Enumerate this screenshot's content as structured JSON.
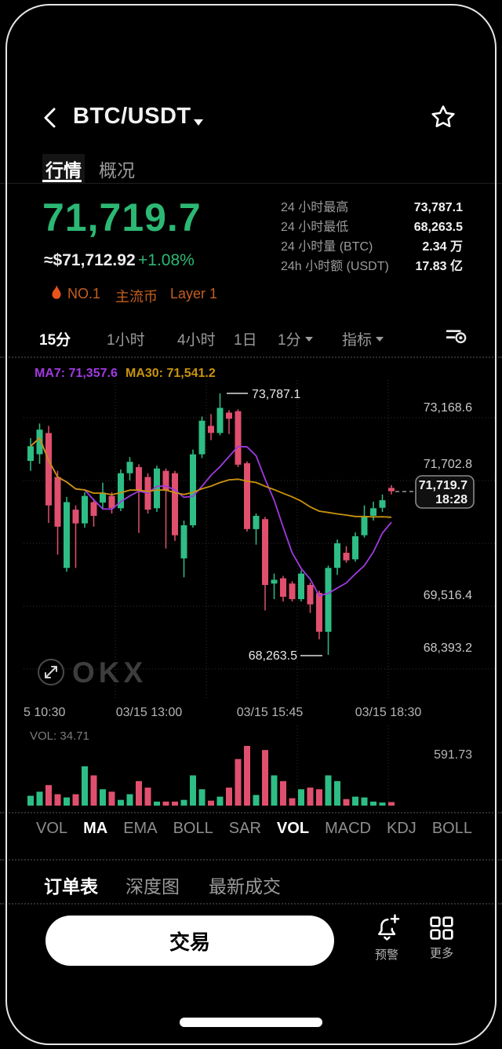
{
  "header": {
    "title": "BTC/USDT",
    "back_icon": "chevron-left",
    "pair_dropdown_icon": "caret-down",
    "favorite_icon": "star-outline"
  },
  "nav_tabs": [
    {
      "label": "行情",
      "active": true
    },
    {
      "label": "概况",
      "active": false
    }
  ],
  "price_panel": {
    "last_price": "71,719.7",
    "fiat_value": "≈$71,712.92",
    "change_pct": "+1.08%",
    "tags": [
      {
        "icon": "flame",
        "label": "NO.1"
      },
      {
        "label": "主流币"
      },
      {
        "label": "Layer 1"
      }
    ]
  },
  "stats": {
    "rows": [
      {
        "label": "24 小时最高",
        "value": "73,787.1"
      },
      {
        "label": "24 小时最低",
        "value": "68,263.5"
      },
      {
        "label": "24 小时量 (BTC)",
        "value": "2.34 万"
      },
      {
        "label": "24h 小时额 (USDT)",
        "value": "17.83 亿"
      }
    ]
  },
  "timeframe_bar": {
    "items": [
      {
        "label": "15分",
        "active": true
      },
      {
        "label": "1小时",
        "active": false
      },
      {
        "label": "4小时",
        "active": false
      },
      {
        "label": "1日",
        "active": false
      },
      {
        "label": "1分",
        "active": false,
        "caret": true
      },
      {
        "label": "指标",
        "active": false,
        "caret": true
      }
    ],
    "settings_icon": "indicator-settings"
  },
  "chart_data": {
    "type": "candlestick",
    "interval": "15m",
    "ma_labels": {
      "ma7": "MA7: 71,357.6",
      "ma30": "MA30: 71,541.2"
    },
    "annotations": {
      "high": "73,787.1",
      "low": "68,263.5"
    },
    "last_price": "71,719.7",
    "last_time": "18:28",
    "y_ticks": [
      "73,168.6",
      "71,702.8",
      "69,516.4",
      "68,393.2"
    ],
    "x_ticks": [
      "5 10:30",
      "03/15 13:00",
      "03/15 15:45",
      "03/15 18:30"
    ],
    "volume": {
      "current_label": "VOL: 34.71",
      "max_label": "591.73",
      "max_value": 591.73
    },
    "colors": {
      "up": "#2ebd85",
      "down": "#e0506e",
      "ma7": "#a03ae0",
      "ma30": "#c9930f"
    },
    "watermark": "OKX",
    "candles": [
      [
        72360,
        72840,
        72150,
        72670,
        97
      ],
      [
        72500,
        73150,
        72300,
        73020,
        138
      ],
      [
        72950,
        73100,
        71050,
        71420,
        203
      ],
      [
        72020,
        72150,
        70380,
        70970,
        113
      ],
      [
        70100,
        71600,
        70020,
        71490,
        81
      ],
      [
        71330,
        71420,
        70100,
        71040,
        113
      ],
      [
        71040,
        71700,
        70950,
        71620,
        389
      ],
      [
        71490,
        71560,
        70970,
        71200,
        300
      ],
      [
        71480,
        71900,
        71330,
        71690,
        162
      ],
      [
        71620,
        71700,
        71250,
        71360,
        138
      ],
      [
        71360,
        72180,
        71300,
        72100,
        57
      ],
      [
        72100,
        72440,
        71950,
        72340,
        113
      ],
      [
        72230,
        72290,
        70840,
        71740,
        243
      ],
      [
        72020,
        72100,
        71250,
        71330,
        178
      ],
      [
        71360,
        72260,
        71280,
        72200,
        40
      ],
      [
        72150,
        72200,
        70510,
        71740,
        40
      ],
      [
        72100,
        72150,
        70670,
        70790,
        40
      ],
      [
        70300,
        71100,
        69900,
        71000,
        57
      ],
      [
        71000,
        72600,
        70950,
        72500,
        300
      ],
      [
        72500,
        73300,
        72420,
        73210,
        162
      ],
      [
        73100,
        73350,
        72800,
        72950,
        49
      ],
      [
        72950,
        73787.1,
        72900,
        73480,
        89
      ],
      [
        73380,
        73430,
        72930,
        73250,
        178
      ],
      [
        73410,
        73450,
        72230,
        72280,
        462
      ],
      [
        72310,
        72350,
        70870,
        70920,
        591.73
      ],
      [
        70920,
        71250,
        70590,
        71200,
        105
      ],
      [
        71130,
        71180,
        69200,
        69740,
        551
      ],
      [
        69770,
        69980,
        69440,
        69850,
        300
      ],
      [
        69880,
        69930,
        69390,
        69490,
        243
      ],
      [
        69770,
        69820,
        69390,
        69440,
        73
      ],
      [
        69440,
        70050,
        69390,
        69980,
        162
      ],
      [
        69740,
        69790,
        69150,
        69330,
        178
      ],
      [
        69570,
        69620,
        68590,
        68750,
        162
      ],
      [
        68750,
        70150,
        68263.5,
        70100,
        300
      ],
      [
        70100,
        70700,
        69950,
        70620,
        243
      ],
      [
        70420,
        70560,
        70210,
        70260,
        65
      ],
      [
        70280,
        70850,
        70230,
        70770,
        89
      ],
      [
        70790,
        71420,
        70740,
        71200,
        81
      ],
      [
        71200,
        71500,
        71100,
        71360,
        40
      ],
      [
        71370,
        71650,
        71280,
        71530,
        30
      ],
      [
        71790,
        71850,
        71650,
        71719.7,
        34.71
      ]
    ]
  },
  "indicator_tabs": [
    {
      "label": "VOL",
      "active": false
    },
    {
      "label": "MA",
      "active": true
    },
    {
      "label": "EMA",
      "active": false
    },
    {
      "label": "BOLL",
      "active": false
    },
    {
      "label": "SAR",
      "active": false
    },
    {
      "label": "VOL",
      "active": true
    },
    {
      "label": "MACD",
      "active": false
    },
    {
      "label": "KDJ",
      "active": false
    },
    {
      "label": "BOLL",
      "active": false
    }
  ],
  "panel_tabs": [
    {
      "label": "订单表",
      "active": true
    },
    {
      "label": "深度图",
      "active": false
    },
    {
      "label": "最新成交",
      "active": false
    }
  ],
  "action_bar": {
    "trade_button": "交易",
    "alert": {
      "label": "预警",
      "icon": "bell-plus"
    },
    "more": {
      "label": "更多",
      "icon": "grid-2x2"
    }
  }
}
